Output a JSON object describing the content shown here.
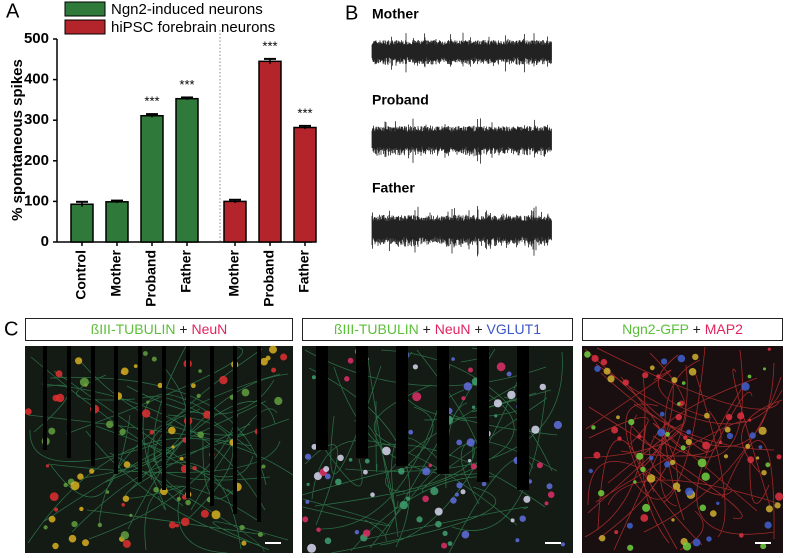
{
  "panel_labels": [
    "A",
    "B",
    "C"
  ],
  "chart_data": {
    "type": "bar",
    "ylabel": "% spontaneous spikes",
    "ylim": [
      0,
      500
    ],
    "yticks": [
      0,
      100,
      200,
      300,
      400,
      500
    ],
    "series": [
      {
        "name": "Ngn2-induced neurons",
        "color": "#2f7a3b",
        "categories": [
          "Control",
          "Mother",
          "Proband",
          "Father"
        ],
        "values": [
          93,
          99,
          311,
          353
        ],
        "errors": [
          6,
          3,
          4,
          3
        ],
        "annotations": [
          null,
          null,
          "***",
          "***"
        ]
      },
      {
        "name": "hiPSC forebrain neurons",
        "color": "#b3252a",
        "categories": [
          "Mother",
          "Proband",
          "Father"
        ],
        "values": [
          100,
          445,
          282
        ],
        "errors": [
          4,
          6,
          4
        ],
        "annotations": [
          null,
          "***",
          "***"
        ]
      }
    ]
  },
  "traces": {
    "labels": [
      "Mother",
      "Proband",
      "Father"
    ]
  },
  "images": {
    "captions": [
      [
        {
          "text": "ßIII-TUBULIN",
          "color": "#5cbf3a"
        },
        {
          "text": "+",
          "color": "#222222"
        },
        {
          "text": "NeuN",
          "color": "#e0245e"
        }
      ],
      [
        {
          "text": "ßIII-TUBULIN",
          "color": "#5cbf3a"
        },
        {
          "text": "+",
          "color": "#222222"
        },
        {
          "text": "NeuN",
          "color": "#e0245e"
        },
        {
          "text": "+",
          "color": "#222222"
        },
        {
          "text": "VGLUT1",
          "color": "#3b55c8"
        }
      ],
      [
        {
          "text": "Ngn2-GFP",
          "color": "#5cbf3a"
        },
        {
          "text": "+",
          "color": "#222222"
        },
        {
          "text": "MAP2",
          "color": "#e0245e"
        }
      ]
    ]
  }
}
